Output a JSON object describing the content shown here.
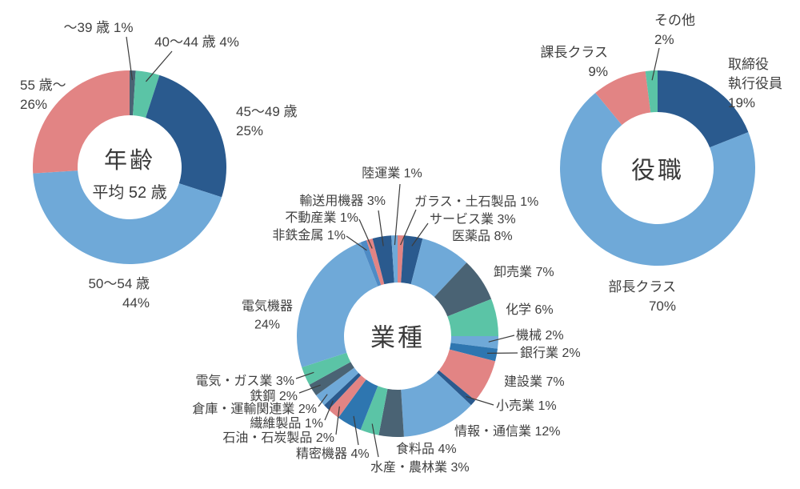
{
  "page": {
    "background": "#FFFFFF",
    "text_color": "#3F3F3F",
    "leader_line_color": "#3C3C3C"
  },
  "palette": {
    "light_blue": "#6FA9D8",
    "dark_blue": "#2A5A8E",
    "salmon": "#E28484",
    "teal": "#5BC4A6",
    "slate": "#4A6374",
    "medium_blue": "#2E76B0",
    "steel_blue": "#4E8BC5"
  },
  "chart_data": [
    {
      "id": "age",
      "type": "pie",
      "donut": true,
      "title": "年齢",
      "center_title": "年齢",
      "center_subtitle": "平均 52 歳",
      "unit": "%",
      "start_angle_deg": -90,
      "direction": "clockwise",
      "categories": [
        "〜39歳",
        "40〜44歳",
        "45〜49歳",
        "50〜54歳",
        "55歳〜"
      ],
      "values": [
        1,
        4,
        25,
        44,
        26
      ],
      "segments": [
        {
          "label": "〜39歳",
          "value": 1,
          "display": "〜39 歳 1%",
          "color": "slate"
        },
        {
          "label": "40〜44歳",
          "value": 4,
          "display": "40〜44 歳 4%",
          "color": "teal"
        },
        {
          "label": "45〜49歳",
          "value": 25,
          "display": "45〜49 歳\n25%",
          "color": "dark_blue"
        },
        {
          "label": "50〜54歳",
          "value": 44,
          "display": "50〜54 歳\n44%",
          "color": "light_blue"
        },
        {
          "label": "55歳〜",
          "value": 26,
          "display": "55 歳〜\n26%",
          "color": "salmon"
        }
      ]
    },
    {
      "id": "industry",
      "type": "pie",
      "donut": true,
      "title": "業種",
      "center_title": "業種",
      "center_subtitle": "",
      "unit": "%",
      "start_angle_deg": -90,
      "direction": "clockwise",
      "categories": [
        "ガラス・土石製品",
        "サービス業",
        "医薬品",
        "卸売業",
        "化学",
        "機械",
        "銀行業",
        "建設業",
        "小売業",
        "情報・通信業",
        "食料品",
        "水産・農林業",
        "精密機器",
        "石油・石炭製品",
        "繊維製品",
        "倉庫・運輸関連業",
        "鉄鋼",
        "電気・ガス業",
        "電気機器",
        "非鉄金属",
        "不動産業",
        "輸送用機器",
        "陸運業"
      ],
      "values": [
        1,
        3,
        8,
        7,
        6,
        2,
        2,
        7,
        1,
        12,
        4,
        3,
        4,
        2,
        1,
        2,
        2,
        3,
        24,
        1,
        1,
        3,
        1
      ],
      "segments": [
        {
          "label": "ガラス・土石製品",
          "value": 1,
          "display": "ガラス・土石製品 1%",
          "color": "salmon"
        },
        {
          "label": "サービス業",
          "value": 3,
          "display": "サービス業 3%",
          "color": "dark_blue"
        },
        {
          "label": "医薬品",
          "value": 8,
          "display": "医薬品 8%",
          "color": "light_blue"
        },
        {
          "label": "卸売業",
          "value": 7,
          "display": "卸売業 7%",
          "color": "slate"
        },
        {
          "label": "化学",
          "value": 6,
          "display": "化学 6%",
          "color": "teal"
        },
        {
          "label": "機械",
          "value": 2,
          "display": "機械 2%",
          "color": "light_blue"
        },
        {
          "label": "銀行業",
          "value": 2,
          "display": "銀行業 2%",
          "color": "medium_blue"
        },
        {
          "label": "建設業",
          "value": 7,
          "display": "建設業 7%",
          "color": "salmon"
        },
        {
          "label": "小売業",
          "value": 1,
          "display": "小売業 1%",
          "color": "dark_blue"
        },
        {
          "label": "情報・通信業",
          "value": 12,
          "display": "情報・通信業 12%",
          "color": "light_blue"
        },
        {
          "label": "食料品",
          "value": 4,
          "display": "食料品 4%",
          "color": "slate"
        },
        {
          "label": "水産・農林業",
          "value": 3,
          "display": "水産・農林業 3%",
          "color": "teal"
        },
        {
          "label": "精密機器",
          "value": 4,
          "display": "精密機器 4%",
          "color": "medium_blue"
        },
        {
          "label": "石油・石炭製品",
          "value": 2,
          "display": "石油・石炭製品 2%",
          "color": "salmon"
        },
        {
          "label": "繊維製品",
          "value": 1,
          "display": "繊維製品 1%",
          "color": "dark_blue"
        },
        {
          "label": "倉庫・運輸関連業",
          "value": 2,
          "display": "倉庫・運輸関連業 2%",
          "color": "light_blue"
        },
        {
          "label": "鉄鋼",
          "value": 2,
          "display": "鉄鋼 2%",
          "color": "slate"
        },
        {
          "label": "電気・ガス業",
          "value": 3,
          "display": "電気・ガス業 3%",
          "color": "teal"
        },
        {
          "label": "電気機器",
          "value": 24,
          "display": "電気機器\n24%",
          "color": "light_blue"
        },
        {
          "label": "非鉄金属",
          "value": 1,
          "display": "非鉄金属 1%",
          "color": "steel_blue"
        },
        {
          "label": "不動産業",
          "value": 1,
          "display": "不動産業 1%",
          "color": "salmon"
        },
        {
          "label": "輸送用機器",
          "value": 3,
          "display": "輸送用機器 3%",
          "color": "dark_blue"
        },
        {
          "label": "陸運業",
          "value": 1,
          "display": "陸運業 1%",
          "color": "light_blue"
        }
      ]
    },
    {
      "id": "position",
      "type": "pie",
      "donut": true,
      "title": "役職",
      "center_title": "役職",
      "center_subtitle": "",
      "unit": "%",
      "start_angle_deg": -90,
      "direction": "clockwise",
      "categories": [
        "取締役執行役員",
        "部長クラス",
        "課長クラス",
        "その他"
      ],
      "values": [
        19,
        70,
        9,
        2
      ],
      "segments": [
        {
          "label": "取締役執行役員",
          "value": 19,
          "display": "取締役\n執行役員\n19%",
          "color": "dark_blue"
        },
        {
          "label": "部長クラス",
          "value": 70,
          "display": "部長クラス\n70%",
          "color": "light_blue"
        },
        {
          "label": "課長クラス",
          "value": 9,
          "display": "課長クラス\n9%",
          "color": "salmon"
        },
        {
          "label": "その他",
          "value": 2,
          "display": "その他\n2%",
          "color": "teal"
        }
      ]
    }
  ]
}
